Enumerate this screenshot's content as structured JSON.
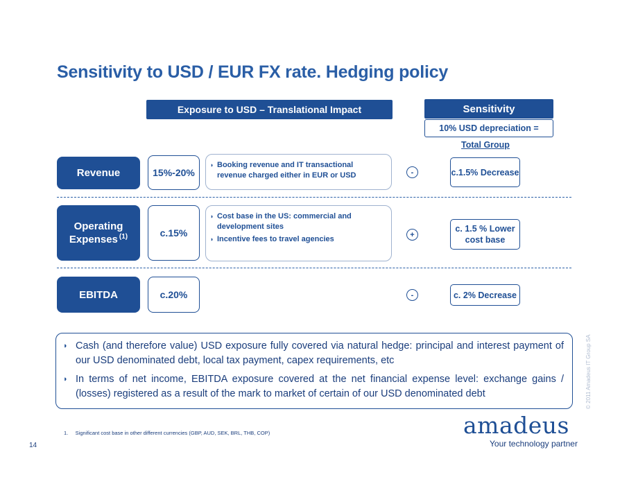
{
  "title": "Sensitivity to USD / EUR FX rate. Hedging policy",
  "headers": {
    "exposure": "Exposure to USD – Translational Impact",
    "sensitivity": "Sensitivity",
    "sensitivity_sub": "10% USD depreciation =",
    "sensitivity_sub2": "Total Group"
  },
  "rows": [
    {
      "label": "Revenue",
      "label_sup": "",
      "pct": "15%-20%",
      "bullets": [
        "Booking revenue and IT transactional revenue charged either in EUR or USD"
      ],
      "sign": "-",
      "sensitivity": "c.1.5% Decrease"
    },
    {
      "label": "Operating Expenses",
      "label_sup": "(1)",
      "pct": "c.15%",
      "bullets": [
        "Cost base in the US: commercial and development sites",
        "Incentive fees to travel agencies"
      ],
      "sign": "+",
      "sensitivity": "c. 1.5 % Lower cost base"
    },
    {
      "label": "EBITDA",
      "label_sup": "",
      "pct": "c.20%",
      "bullets": [],
      "sign": "-",
      "sensitivity": "c. 2% Decrease"
    }
  ],
  "notes": [
    "Cash (and therefore value) USD exposure fully covered via natural hedge: principal and interest payment of our USD denominated debt, local tax payment, capex requirements, etc",
    "In terms of net income, EBITDA exposure covered at the net financial expense level: exchange gains / (losses) registered as a result of the mark to market of certain of our USD denominated debt"
  ],
  "footnote": "1.     Significant cost base in other different currencies (GBP, AUD, SEK, BRL, THB, COP)",
  "page_number": "14",
  "copyright": "© 2011 Amadeus IT Group SA",
  "logo": "amadeus",
  "tagline": "Your technology partner"
}
